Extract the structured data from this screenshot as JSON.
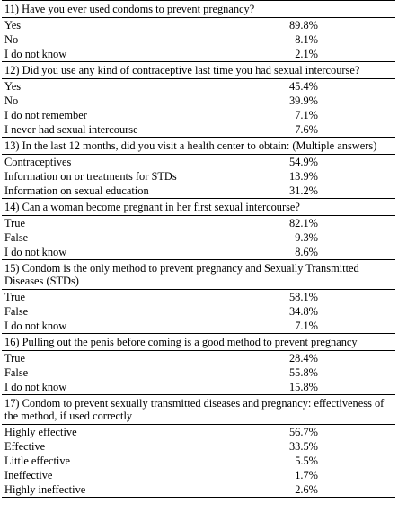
{
  "questions": [
    {
      "question": "11) Have you ever used condoms to prevent pregnancy?",
      "answers": [
        {
          "label": "Yes",
          "value": "89.8%"
        },
        {
          "label": "No",
          "value": "8.1%"
        },
        {
          "label": "I do not know",
          "value": "2.1%"
        }
      ]
    },
    {
      "question": "12) Did you use any kind of contraceptive last time you had sexual intercourse?",
      "answers": [
        {
          "label": "Yes",
          "value": "45.4%"
        },
        {
          "label": "No",
          "value": "39.9%"
        },
        {
          "label": "I do not remember",
          "value": "7.1%"
        },
        {
          "label": "I never had sexual intercourse",
          "value": "7.6%"
        }
      ]
    },
    {
      "question": "13) In the last 12 months, did you visit a health center to obtain: (Multiple answers)",
      "answers": [
        {
          "label": "Contraceptives",
          "value": "54.9%"
        },
        {
          "label": "Information on or treatments for STDs",
          "value": "13.9%"
        },
        {
          "label": "Information on sexual education",
          "value": "31.2%"
        }
      ]
    },
    {
      "question": "14) Can a woman become pregnant in her first sexual intercourse?",
      "answers": [
        {
          "label": "True",
          "value": "82.1%"
        },
        {
          "label": "False",
          "value": "9.3%"
        },
        {
          "label": "I do not know",
          "value": "8.6%"
        }
      ]
    },
    {
      "question": "15) Condom is the only method to prevent pregnancy and Sexually Transmitted Diseases (STDs)",
      "answers": [
        {
          "label": "True",
          "value": "58.1%"
        },
        {
          "label": "False",
          "value": "34.8%"
        },
        {
          "label": "I do not know",
          "value": "7.1%"
        }
      ]
    },
    {
      "question": "16) Pulling out the penis before coming is a good method to prevent pregnancy",
      "answers": [
        {
          "label": "True",
          "value": "28.4%"
        },
        {
          "label": "False",
          "value": "55.8%"
        },
        {
          "label": "I do not know",
          "value": "15.8%"
        }
      ]
    },
    {
      "question": "17) Condom to prevent sexually transmitted diseases and pregnancy: effectiveness of the method, if used correctly",
      "answers": [
        {
          "label": "Highly effective",
          "value": "56.7%"
        },
        {
          "label": "Effective",
          "value": "33.5%"
        },
        {
          "label": "Little effective",
          "value": "5.5%"
        },
        {
          "label": "Ineffective",
          "value": "1.7%"
        },
        {
          "label": "Highly ineffective",
          "value": "2.6%"
        }
      ]
    }
  ]
}
